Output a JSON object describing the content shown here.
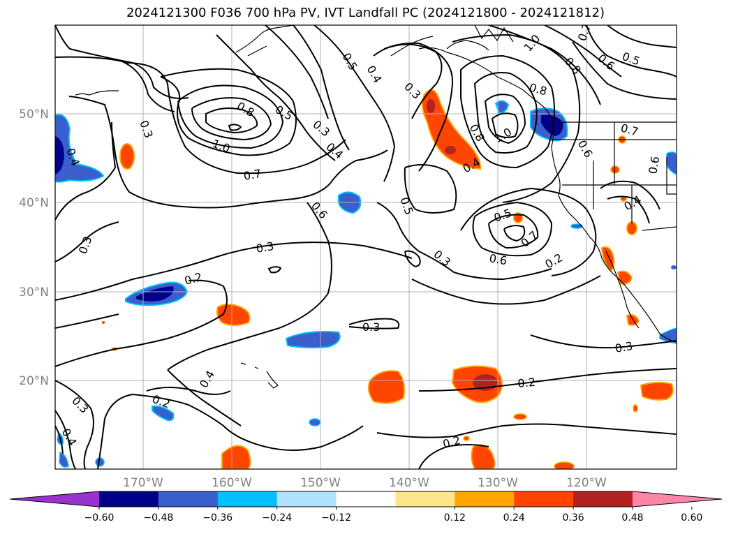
{
  "title": "2024121300 F036 700 hPa PV, IVT Landfall PC (2024121800 - 2024121812)",
  "lat_labels": [
    "50°N",
    "40°N",
    "30°N",
    "20°N"
  ],
  "lon_labels": [
    "170°W",
    "160°W",
    "150°W",
    "140°W",
    "130°W",
    "120°W"
  ],
  "colorbar": {
    "ticks": [
      "−0.60",
      "−0.48",
      "−0.36",
      "−0.24",
      "−0.12",
      "0.12",
      "0.24",
      "0.36",
      "0.48",
      "0.60"
    ],
    "colors": [
      "#9a32cd",
      "#00008b",
      "#3a5fcd",
      "#00bfff",
      "#b0e2ff",
      "#ffffff",
      "#fde68a",
      "#ffa500",
      "#ff4500",
      "#b22222",
      "#ff85a8"
    ]
  },
  "contour_labels": [
    "0.5",
    "0.4",
    "0.3",
    "0.8",
    "0.5",
    "0.3",
    "0.4",
    "1.0",
    "0.7",
    "0.6",
    "0.3",
    "0.4",
    "0.3",
    "0.3",
    "0.2",
    "0.3",
    "0.4",
    "0.2",
    "0.3",
    "0.4",
    "0.2",
    "0.5",
    "0.3",
    "0.6",
    "0.7",
    "0.5",
    "0.2",
    "0.3",
    "0.2",
    "0.8",
    "1.0",
    "0.4",
    "0.8",
    "1.0",
    "0.8",
    "0.6",
    "0.7",
    "0.6",
    "0.5",
    "0.7",
    "0.4",
    "0.6"
  ]
}
